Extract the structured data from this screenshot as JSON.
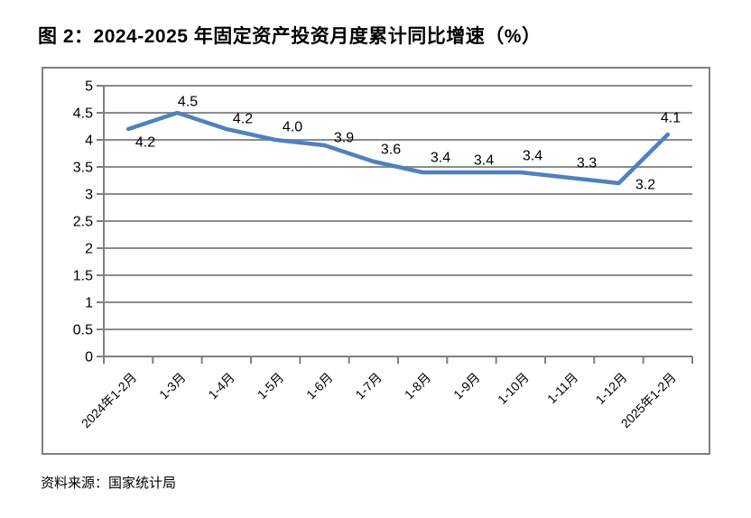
{
  "page": {
    "title": "图 2：2024-2025 年固定资产投资月度累计同比增速（%）",
    "source": "资料来源：国家统计局"
  },
  "chart_data": {
    "type": "line",
    "title": "图 2：2024-2025 年固定资产投资月度累计同比增速（%）",
    "categories": [
      "2024年1-2月",
      "1-3月",
      "1-4月",
      "1-5月",
      "1-6月",
      "1-7月",
      "1-8月",
      "1-9月",
      "1-10月",
      "1-11月",
      "1-12月",
      "2025年1-2月"
    ],
    "values": [
      4.2,
      4.5,
      4.2,
      4.0,
      3.9,
      3.6,
      3.4,
      3.4,
      3.4,
      3.3,
      3.2,
      4.1
    ],
    "xlabel": "",
    "ylabel": "",
    "ylim": [
      0,
      5
    ],
    "ytick_step": 0.5,
    "grid": true,
    "legend": false,
    "data_labels": true,
    "colors": {
      "line": "#4F81BD",
      "gridline": "#8C8C8C",
      "axis": "#7F7F7F",
      "frame": "#808080",
      "text": "#000000",
      "plot_background": "#ffffff"
    }
  }
}
